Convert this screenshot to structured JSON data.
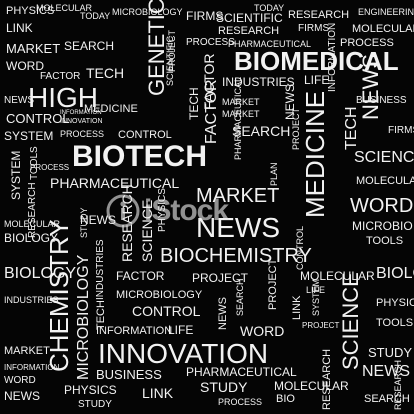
{
  "image": {
    "words": [
      "CHEMISTRY",
      "PHYSICS",
      "LINK",
      "TODAY",
      "MICROBIOLOGY",
      "FIRMS",
      "NEWS",
      "TOOLS",
      "PROJECT",
      "RESEARCH",
      "SYSTEM",
      "MARKET",
      "WORD",
      "SCIENTIFIC",
      "RESEARCH",
      "PROCESS",
      "PHARMACEUTICAL",
      "PROCESS",
      "CONTROL",
      "SEARCH",
      "GENETIC",
      "BIOMEDICAL",
      "HIGH",
      "TECH",
      "FACTOR",
      "INDUSTRIES",
      "LIFE",
      "MEDICINE",
      "CONTROL",
      "BIOTECH",
      "PHARMACEUTICAL",
      "MARKET",
      "BIOCHEMISTRY",
      "NEWS",
      "PROJECT",
      "INNOVATION",
      "BUSINESS",
      "SCIENCE",
      "STUDY",
      "INFORMATION",
      "MOLECULAR",
      "SEARCH",
      "FACTOR",
      "LINK",
      "CONTROL",
      "INFORMATION",
      "LIFE",
      "WORD",
      "PHYSICS",
      "MOLECULAR",
      "BIOLOGY",
      "INDUSTRIES",
      "SYSTEM",
      "RESEARCH",
      "TECH",
      "MICROBIOLOGY",
      "PROJECT",
      "STUDY",
      "SCIENTIFIC",
      "MOLECULAR",
      "WORD",
      "MICROBIO",
      "TOOLS",
      "FIRMS",
      "BIOLOGY",
      "NEWS",
      "MARKET",
      "PROCESS",
      "SCIENCE",
      "ENGINEERING",
      "PHARMACEUTICAL",
      "MICROBIOLOGY",
      "BIO",
      "PLAN",
      "TECH",
      "PHYSICS",
      "TOOLS",
      "STUDY",
      "NEWS",
      "TECH",
      "WORD",
      "LINK",
      "RESEARCH",
      "INDUSTRIES",
      "MARKET",
      "INFORMATION",
      "PROCESS",
      "CONTROL",
      "SEARCH",
      "NEWS",
      "BUSINESS",
      "STUDY",
      "SYSTEM",
      "PROJECT",
      "LIFE",
      "FIRMS",
      "SEARCH",
      "LINK",
      "FACTOR",
      "TODAY"
    ],
    "watermark": "iStock"
  }
}
